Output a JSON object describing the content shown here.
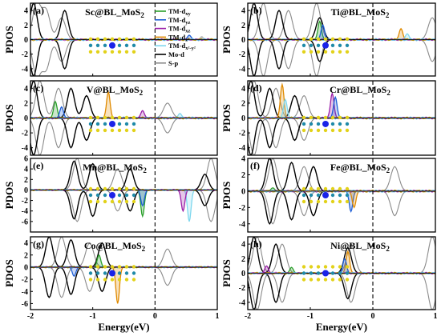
{
  "chart_data": {
    "type": "line",
    "ylabel": "PDOS",
    "xlabel": "Energy(eV)",
    "xlim": [
      -2,
      1
    ],
    "x_ticks": [
      "-2",
      "-1",
      "0",
      "1"
    ],
    "fermi_level": 0,
    "legend": {
      "placement": "panel-a-right",
      "entries": [
        {
          "name": "TM-dxy",
          "base": "TM-d",
          "sub": "xy",
          "color": "#2ca02c"
        },
        {
          "name": "TM-dyz",
          "base": "TM-d",
          "sub": "yz",
          "color": "#1f5fd6"
        },
        {
          "name": "TM-dxz",
          "base": "TM-d",
          "sub": "xz",
          "color": "#9b1fa8"
        },
        {
          "name": "TM-dz2",
          "base": "TM-d",
          "sub": "z²",
          "color": "#e08a00"
        },
        {
          "name": "TM-dx2-y2",
          "base": "TM-d",
          "sub": "x²-y²",
          "color": "#7fd7ee"
        },
        {
          "name": "Mo-d",
          "base": "Mo-d",
          "sub": "",
          "color": "#000000"
        },
        {
          "name": "S-p",
          "base": "S-p",
          "sub": "",
          "color": "#8a8a8a"
        }
      ]
    },
    "panels": [
      {
        "label": "(a)",
        "title_main": "Sc@BL_MoS",
        "title_sub": "2",
        "ylim": [
          -5,
          5
        ],
        "yticks": [
          -4,
          -2,
          0,
          2,
          4
        ],
        "black_peaks": [
          [
            -1.95,
            5
          ],
          [
            -1.45,
            4
          ]
        ],
        "gray_peaks": [
          [
            -1.9,
            5
          ],
          [
            -1.75,
            4
          ],
          [
            -1.5,
            3
          ]
        ],
        "tm_peaks": [
          [
            0.55,
            0.6,
            1
          ],
          [
            0.75,
            0.5,
            1.2
          ]
        ],
        "black_top": false
      },
      {
        "label": "(b)",
        "title_main": "Ti@BL_MoS",
        "title_sub": "2",
        "ylim": [
          -5,
          5
        ],
        "yticks": [
          -4,
          -2,
          0,
          2,
          4
        ],
        "black_peaks": [
          [
            -1.9,
            5
          ],
          [
            -1.5,
            4
          ],
          [
            -0.85,
            3
          ]
        ],
        "gray_peaks": [
          [
            -1.75,
            5
          ],
          [
            -1.35,
            4
          ],
          [
            -0.9,
            5
          ],
          [
            0.95,
            3
          ]
        ],
        "tm_peaks": [
          [
            -0.85,
            2.5,
            0
          ],
          [
            -0.8,
            2.0,
            1
          ],
          [
            0.45,
            1.5,
            3
          ],
          [
            0.55,
            0.8,
            4
          ]
        ],
        "black_top": false
      },
      {
        "label": "(c)",
        "title_main": "V@BL_MoS",
        "title_sub": "2",
        "ylim": [
          -5,
          5
        ],
        "yticks": [
          -4,
          -2,
          0,
          2,
          4
        ],
        "black_peaks": [
          [
            -1.95,
            5
          ],
          [
            -1.35,
            4
          ],
          [
            -1.1,
            3
          ]
        ],
        "gray_peaks": [
          [
            -1.85,
            5
          ],
          [
            -1.55,
            4
          ],
          [
            0.2,
            2
          ]
        ],
        "tm_peaks": [
          [
            -1.6,
            2.2,
            0
          ],
          [
            -1.5,
            1.5,
            1
          ],
          [
            -0.75,
            3.5,
            3
          ],
          [
            -0.2,
            1.0,
            2
          ],
          [
            0.4,
            0.6,
            4
          ]
        ],
        "black_top": false
      },
      {
        "label": "(d)",
        "title_main": "Cr@BL_MoS",
        "title_sub": "2",
        "ylim": [
          -5,
          5
        ],
        "yticks": [
          -4,
          -2,
          0,
          2,
          4
        ],
        "black_peaks": [
          [
            -1.95,
            5
          ],
          [
            -1.65,
            4
          ],
          [
            -1.25,
            3
          ]
        ],
        "gray_peaks": [
          [
            -1.9,
            5
          ],
          [
            -1.55,
            4
          ],
          [
            -1.1,
            3
          ]
        ],
        "tm_peaks": [
          [
            -1.45,
            4.5,
            3
          ],
          [
            -1.4,
            2.5,
            4
          ],
          [
            -0.65,
            3.3,
            2
          ],
          [
            -0.6,
            2.8,
            1
          ]
        ],
        "black_top": false
      },
      {
        "label": "(e)",
        "title_main": "Mn@BL_MoS",
        "title_sub": "2",
        "ylim": [
          -8,
          6
        ],
        "yticks": [
          -6,
          -4,
          -2,
          0,
          2,
          4,
          6
        ],
        "black_peaks": [
          [
            -1.3,
            5.5
          ],
          [
            -1.0,
            5.0
          ],
          [
            -0.4,
            4.0
          ],
          [
            0.8,
            3.0
          ]
        ],
        "gray_peaks": [
          [
            -1.25,
            6
          ],
          [
            -0.6,
            4
          ],
          [
            0.9,
            6
          ]
        ],
        "tm_peaks": [
          [
            -0.2,
            -5,
            0
          ],
          [
            -0.2,
            -3,
            1
          ],
          [
            0.55,
            -6,
            4
          ],
          [
            0.45,
            -4,
            2
          ]
        ],
        "black_top": true
      },
      {
        "label": "(f)",
        "title_main": "Fe@BL_MoS",
        "title_sub": "2",
        "ylim": [
          -5,
          4
        ],
        "yticks": [
          -4,
          -2,
          0,
          2,
          4
        ],
        "black_peaks": [
          [
            -1.65,
            4
          ],
          [
            -1.3,
            3.5
          ],
          [
            -0.95,
            3
          ]
        ],
        "gray_peaks": [
          [
            -1.6,
            4
          ],
          [
            -1.1,
            3
          ],
          [
            0.35,
            3
          ]
        ],
        "tm_peaks": [
          [
            -0.35,
            -2.5,
            1
          ],
          [
            -0.3,
            -2.0,
            3
          ],
          [
            -1.6,
            0.4,
            0
          ]
        ],
        "black_top": true
      },
      {
        "label": "(g)",
        "title_main": "Co@BL_MoS",
        "title_sub": "2",
        "ylim": [
          -7,
          5
        ],
        "yticks": [
          -6,
          -4,
          -2,
          0,
          2,
          4
        ],
        "black_peaks": [
          [
            -1.7,
            5
          ],
          [
            -1.35,
            4.5
          ],
          [
            -0.85,
            4
          ]
        ],
        "gray_peaks": [
          [
            -1.5,
            5
          ],
          [
            -1.05,
            4
          ],
          [
            0.2,
            3
          ]
        ],
        "tm_peaks": [
          [
            -0.6,
            -6,
            3
          ],
          [
            -1.3,
            -1.5,
            1
          ],
          [
            -0.9,
            2.0,
            0
          ]
        ],
        "black_top": true
      },
      {
        "label": "(h)",
        "title_main": "Ni@BL_MoS",
        "title_sub": "2",
        "ylim": [
          -5,
          5
        ],
        "yticks": [
          -4,
          -2,
          0,
          2,
          4
        ],
        "black_peaks": [
          [
            -1.9,
            5
          ],
          [
            -1.55,
            4
          ],
          [
            -0.4,
            3.5
          ]
        ],
        "gray_peaks": [
          [
            -1.85,
            5
          ],
          [
            -1.45,
            4
          ],
          [
            -0.35,
            4
          ],
          [
            0.95,
            5
          ]
        ],
        "tm_peaks": [
          [
            -0.4,
            3.0,
            3
          ],
          [
            -0.45,
            2.0,
            1
          ],
          [
            -1.7,
            1.0,
            2
          ],
          [
            -1.3,
            0.8,
            0
          ]
        ],
        "black_top": true
      }
    ]
  }
}
